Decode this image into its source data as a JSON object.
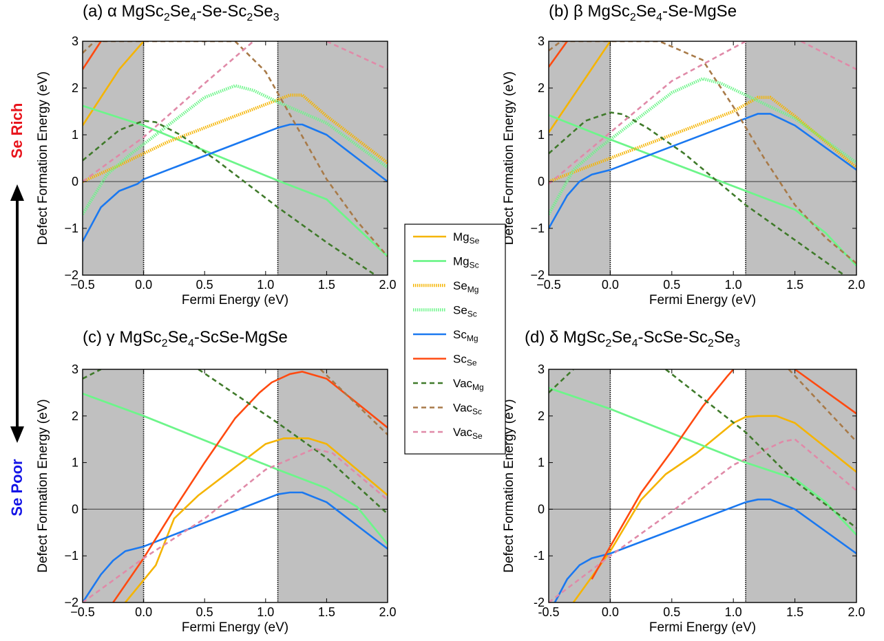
{
  "figure": {
    "side_label_top_prefix": "Se",
    "side_label_top_word": "Rich",
    "side_label_top_color": "#e8141c",
    "side_label_bottom_prefix": "Se",
    "side_label_bottom_word": "Poor",
    "side_label_bottom_color": "#1515e6",
    "shade_color": "#c0c0c0",
    "zero_line_color": "#555555"
  },
  "legend": [
    {
      "base": "Mg",
      "sub": "Se",
      "color": "#f5b400",
      "style": "solid"
    },
    {
      "base": "Mg",
      "sub": "Sc",
      "color": "#6df58a",
      "style": "dotted-thick"
    },
    {
      "base": "Se",
      "sub": "Mg",
      "color": "#f5b400",
      "style": "dotted"
    },
    {
      "base": "Se",
      "sub": "Sc",
      "color": "#6df58a",
      "style": "dotted"
    },
    {
      "base": "Sc",
      "sub": "Mg",
      "color": "#1a78f0",
      "style": "solid"
    },
    {
      "base": "Sc",
      "sub": "Se",
      "color": "#ff4a10",
      "style": "solid"
    },
    {
      "base": "Vac",
      "sub": "Mg",
      "color": "#3f7a2a",
      "style": "dashed"
    },
    {
      "base": "Vac",
      "sub": "Sc",
      "color": "#a87a48",
      "style": "dashed"
    },
    {
      "base": "Vac",
      "sub": "Se",
      "color": "#e08aa8",
      "style": "dashed"
    }
  ],
  "chart_data": [
    {
      "type": "line",
      "title_prefix": "(a) α MgSc",
      "title_parts": [
        {
          "t": "(a) α MgSc"
        },
        {
          "t": "2",
          "sub": true
        },
        {
          "t": "Se"
        },
        {
          "t": "4",
          "sub": true
        },
        {
          "t": "-Se-Sc"
        },
        {
          "t": "2",
          "sub": true
        },
        {
          "t": "Se"
        },
        {
          "t": "3",
          "sub": true
        }
      ],
      "xlabel": "Fermi Energy (eV)",
      "ylabel": "Defect Formation Energy (eV)",
      "xlim": [
        -0.5,
        2.0
      ],
      "ylim": [
        -2,
        3
      ],
      "xticks": [
        "−0.5",
        "0.0",
        "0.5",
        "1.0",
        "1.5",
        "2.0"
      ],
      "yticks": [
        "−2",
        "−1",
        "0",
        "1",
        "2",
        "3"
      ],
      "shaded": [
        [
          -0.5,
          0.0
        ],
        [
          1.1,
          2.0
        ]
      ],
      "vlines": [
        0.0,
        1.1
      ],
      "series": [
        {
          "key": "Mg_Se",
          "x": [
            -0.5,
            -0.2,
            0.0
          ],
          "y": [
            1.2,
            2.4,
            3.0
          ]
        },
        {
          "key": "Mg_Sc",
          "x": [
            -0.5,
            0.0,
            1.1,
            1.5,
            2.0
          ],
          "y": [
            1.62,
            1.2,
            0.02,
            -0.38,
            -1.6
          ]
        },
        {
          "key": "Se_Mg",
          "x": [
            -0.5,
            -0.2,
            0.2,
            0.6,
            1.0,
            1.2,
            1.3,
            1.5,
            2.0
          ],
          "y": [
            0.0,
            0.35,
            0.85,
            1.25,
            1.65,
            1.85,
            1.85,
            1.4,
            0.4
          ]
        },
        {
          "key": "Se_Sc",
          "x": [
            -0.5,
            -0.3,
            -0.1,
            0.2,
            0.5,
            0.75,
            0.9,
            1.1,
            1.5,
            2.0
          ],
          "y": [
            -0.7,
            0.15,
            0.6,
            1.2,
            1.8,
            2.05,
            1.95,
            1.7,
            1.25,
            0.3
          ]
        },
        {
          "key": "Sc_Mg",
          "x": [
            -0.5,
            -0.35,
            -0.2,
            -0.05,
            0.0,
            1.1,
            1.2,
            1.3,
            1.5,
            2.0
          ],
          "y": [
            -1.28,
            -0.55,
            -0.2,
            -0.05,
            0.05,
            1.15,
            1.22,
            1.22,
            1.0,
            0.0
          ]
        },
        {
          "key": "Sc_Se",
          "x": [
            -0.5,
            -0.35
          ],
          "y": [
            2.4,
            3.0
          ]
        },
        {
          "key": "Vac_Mg",
          "x": [
            -0.5,
            -0.2,
            0.0,
            0.1,
            0.3,
            0.6,
            1.1,
            1.5,
            1.9
          ],
          "y": [
            0.45,
            1.1,
            1.3,
            1.27,
            1.0,
            0.45,
            -0.55,
            -1.3,
            -2.0
          ]
        },
        {
          "key": "Vac_Sc",
          "x": [
            -0.5,
            -0.4,
            0.75,
            1.0,
            1.25,
            1.5,
            1.75,
            2.0
          ],
          "y": [
            2.75,
            3.0,
            3.0,
            2.35,
            1.2,
            0.05,
            -0.85,
            -1.6
          ]
        },
        {
          "key": "Vac_Se",
          "x": [
            -0.5,
            0.0,
            0.5,
            0.9
          ],
          "y": [
            0.0,
            0.95,
            2.1,
            3.0
          ]
        },
        {
          "key": "Vac_Se",
          "x": [
            1.5,
            2.0
          ],
          "y": [
            3.0,
            2.4
          ]
        }
      ]
    },
    {
      "type": "line",
      "title_parts": [
        {
          "t": "(b) β MgSc"
        },
        {
          "t": "2",
          "sub": true
        },
        {
          "t": "Se"
        },
        {
          "t": "4",
          "sub": true
        },
        {
          "t": "-Se-MgSe"
        }
      ],
      "xlabel": "Fermi Energy (eV)",
      "ylabel": "Defect Formation Energy (eV)",
      "xlim": [
        -0.5,
        2.0
      ],
      "ylim": [
        -2,
        3
      ],
      "xticks": [
        "−0.5",
        "0.0",
        "0.5",
        "1.0",
        "1.5",
        "2.0"
      ],
      "yticks": [
        "−2",
        "−1",
        "0",
        "1",
        "2",
        "3"
      ],
      "shaded": [
        [
          -0.5,
          0.0
        ],
        [
          1.1,
          2.0
        ]
      ],
      "vlines": [
        0.0,
        1.1
      ],
      "series": [
        {
          "key": "Mg_Se",
          "x": [
            -0.5,
            0.0
          ],
          "y": [
            1.05,
            3.0
          ]
        },
        {
          "key": "Mg_Sc",
          "x": [
            -0.5,
            0.0,
            1.1,
            1.5,
            1.75,
            2.0
          ],
          "y": [
            1.42,
            0.9,
            -0.2,
            -0.6,
            -1.1,
            -1.8
          ]
        },
        {
          "key": "Se_Mg",
          "x": [
            -0.5,
            -0.2,
            0.2,
            0.6,
            1.0,
            1.2,
            1.3,
            1.5,
            2.0
          ],
          "y": [
            0.0,
            0.3,
            0.7,
            1.1,
            1.5,
            1.8,
            1.8,
            1.4,
            0.3
          ]
        },
        {
          "key": "Se_Sc",
          "x": [
            -0.5,
            -0.3,
            -0.1,
            0.2,
            0.5,
            0.75,
            0.9,
            1.1,
            1.5,
            2.0
          ],
          "y": [
            -0.7,
            0.25,
            0.7,
            1.3,
            1.9,
            2.2,
            2.1,
            1.85,
            1.35,
            0.4
          ]
        },
        {
          "key": "Sc_Mg",
          "x": [
            -0.5,
            -0.35,
            -0.25,
            -0.15,
            0.0,
            1.1,
            1.2,
            1.3,
            1.5,
            2.0
          ],
          "y": [
            -1.0,
            -0.3,
            0.0,
            0.15,
            0.25,
            1.35,
            1.45,
            1.45,
            1.2,
            0.25
          ]
        },
        {
          "key": "Sc_Se",
          "x": [
            -0.5,
            -0.35
          ],
          "y": [
            2.45,
            3.0
          ]
        },
        {
          "key": "Vac_Mg",
          "x": [
            -0.5,
            -0.2,
            0.0,
            0.1,
            0.3,
            0.6,
            1.1,
            1.5,
            1.9
          ],
          "y": [
            0.6,
            1.3,
            1.48,
            1.44,
            1.15,
            0.6,
            -0.5,
            -1.25,
            -2.0
          ]
        },
        {
          "key": "Vac_Sc",
          "x": [
            -0.5,
            -0.4,
            0.4,
            0.75,
            1.0,
            1.25,
            1.5,
            1.75,
            2.0
          ],
          "y": [
            2.8,
            3.0,
            3.0,
            2.6,
            1.6,
            0.5,
            -0.5,
            -1.2,
            -1.75
          ]
        },
        {
          "key": "Vac_Se",
          "x": [
            -0.5,
            0.0,
            0.5,
            1.1
          ],
          "y": [
            -0.05,
            1.05,
            2.15,
            3.0
          ]
        },
        {
          "key": "Vac_Se",
          "x": [
            1.55,
            2.0
          ],
          "y": [
            3.0,
            2.4
          ]
        }
      ]
    },
    {
      "type": "line",
      "title_parts": [
        {
          "t": "(c) γ MgSc"
        },
        {
          "t": "2",
          "sub": true
        },
        {
          "t": "Se"
        },
        {
          "t": "4",
          "sub": true
        },
        {
          "t": "-ScSe-MgSe"
        }
      ],
      "xlabel": "Fermi Energy (eV)",
      "ylabel": "Defect Formation Energy (eV)",
      "xlim": [
        -0.5,
        2.0
      ],
      "ylim": [
        -2,
        3
      ],
      "xticks": [
        "−0.5",
        "0.0",
        "0.5",
        "1.0",
        "1.5",
        "2.0"
      ],
      "yticks": [
        "−2",
        "−1",
        "0",
        "1",
        "2",
        "3"
      ],
      "shaded": [
        [
          -0.5,
          0.0
        ],
        [
          1.1,
          2.0
        ]
      ],
      "vlines": [
        0.0,
        1.1
      ],
      "series": [
        {
          "key": "Mg_Se",
          "x": [
            -0.15,
            0.1,
            0.25,
            0.45,
            0.7,
            1.0,
            1.15,
            1.35,
            1.5,
            2.0
          ],
          "y": [
            -2.0,
            -1.2,
            -0.2,
            0.3,
            0.8,
            1.4,
            1.52,
            1.52,
            1.4,
            0.3
          ]
        },
        {
          "key": "Mg_Sc",
          "x": [
            -0.5,
            0.0,
            1.1,
            1.5,
            1.75,
            2.0
          ],
          "y": [
            2.48,
            2.0,
            0.85,
            0.45,
            0.05,
            -0.75
          ]
        },
        {
          "key": "Sc_Mg",
          "x": [
            -0.5,
            -0.35,
            -0.25,
            -0.15,
            0.0,
            1.1,
            1.2,
            1.3,
            1.5,
            2.0
          ],
          "y": [
            -2.0,
            -1.4,
            -1.1,
            -0.9,
            -0.8,
            0.32,
            0.36,
            0.36,
            0.15,
            -0.85
          ]
        },
        {
          "key": "Sc_Se",
          "x": [
            -0.25,
            0.0,
            0.25,
            0.5,
            0.75,
            0.95,
            1.05,
            1.2,
            1.3,
            1.5,
            2.0
          ],
          "y": [
            -2.0,
            -1.05,
            0.0,
            1.0,
            1.95,
            2.5,
            2.72,
            2.9,
            2.95,
            2.8,
            1.75
          ]
        },
        {
          "key": "Vac_Mg",
          "x": [
            -0.5,
            -0.35
          ],
          "y": [
            2.8,
            3.0
          ]
        },
        {
          "key": "Vac_Mg",
          "x": [
            0.45,
            1.1,
            1.5,
            2.0
          ],
          "y": [
            3.0,
            1.85,
            1.1,
            -0.1
          ]
        },
        {
          "key": "Vac_Sc",
          "x": [
            1.45,
            2.0
          ],
          "y": [
            3.0,
            1.6
          ]
        },
        {
          "key": "Vac_Se",
          "x": [
            -0.5,
            0.0,
            0.5,
            1.0,
            1.4,
            1.55,
            2.0
          ],
          "y": [
            -2.0,
            -1.05,
            -0.2,
            0.85,
            1.3,
            1.2,
            0.2
          ]
        }
      ]
    },
    {
      "type": "line",
      "title_parts": [
        {
          "t": "(d) δ MgSc"
        },
        {
          "t": "2",
          "sub": true
        },
        {
          "t": "Se"
        },
        {
          "t": "4",
          "sub": true
        },
        {
          "t": "-ScSe-Sc"
        },
        {
          "t": "2",
          "sub": true
        },
        {
          "t": "Se"
        },
        {
          "t": "3",
          "sub": true
        }
      ],
      "xlabel": "Fermi Energy (eV)",
      "ylabel": "Defect Formation Energy (eV)",
      "xlim": [
        -0.5,
        2.0
      ],
      "ylim": [
        -2,
        3
      ],
      "xticks": [
        "-0.5",
        "0.0",
        "0.5",
        "1.0",
        "1.5",
        "2.0"
      ],
      "yticks": [
        "-2",
        "-1",
        "0",
        "1",
        "2",
        "3"
      ],
      "shaded": [
        [
          -0.5,
          0.0
        ],
        [
          1.1,
          2.0
        ]
      ],
      "vlines": [
        0.0,
        1.1
      ],
      "series": [
        {
          "key": "Mg_Se",
          "x": [
            -0.3,
            0.0,
            0.25,
            0.45,
            0.7,
            1.0,
            1.1,
            1.2,
            1.35,
            1.5,
            2.0
          ],
          "y": [
            -2.0,
            -0.9,
            0.2,
            0.75,
            1.2,
            1.85,
            1.98,
            2.0,
            2.0,
            1.85,
            0.8
          ]
        },
        {
          "key": "Mg_Sc",
          "x": [
            -0.5,
            0.0,
            1.1,
            1.5,
            1.75,
            2.0
          ],
          "y": [
            2.6,
            2.15,
            1.0,
            0.65,
            0.15,
            -0.55
          ]
        },
        {
          "key": "Sc_Mg",
          "x": [
            -0.45,
            -0.35,
            -0.25,
            -0.15,
            0.0,
            1.1,
            1.2,
            1.3,
            1.5,
            2.0
          ],
          "y": [
            -2.0,
            -1.5,
            -1.2,
            -1.05,
            -0.95,
            0.15,
            0.21,
            0.21,
            0.0,
            -0.95
          ]
        },
        {
          "key": "Sc_Se",
          "x": [
            -0.15,
            0.0,
            0.25,
            0.5,
            0.75,
            0.95,
            1.0
          ],
          "y": [
            -1.5,
            -0.8,
            0.35,
            1.25,
            2.2,
            2.85,
            3.0
          ]
        },
        {
          "key": "Sc_Se",
          "x": [
            1.5,
            2.0
          ],
          "y": [
            3.0,
            2.05
          ]
        },
        {
          "key": "Vac_Mg",
          "x": [
            -0.5,
            -0.3
          ],
          "y": [
            2.5,
            3.0
          ]
        },
        {
          "key": "Vac_Mg",
          "x": [
            0.45,
            1.1,
            1.5,
            2.0
          ],
          "y": [
            3.0,
            1.65,
            0.6,
            -0.4
          ]
        },
        {
          "key": "Vac_Sc",
          "x": [
            1.45,
            2.0
          ],
          "y": [
            3.0,
            1.45
          ]
        },
        {
          "key": "Vac_Se",
          "x": [
            -0.5,
            0.0,
            0.5,
            1.0,
            1.4,
            1.5,
            2.0
          ],
          "y": [
            -2.0,
            -1.0,
            -0.05,
            0.95,
            1.45,
            1.5,
            0.4
          ]
        }
      ]
    }
  ]
}
